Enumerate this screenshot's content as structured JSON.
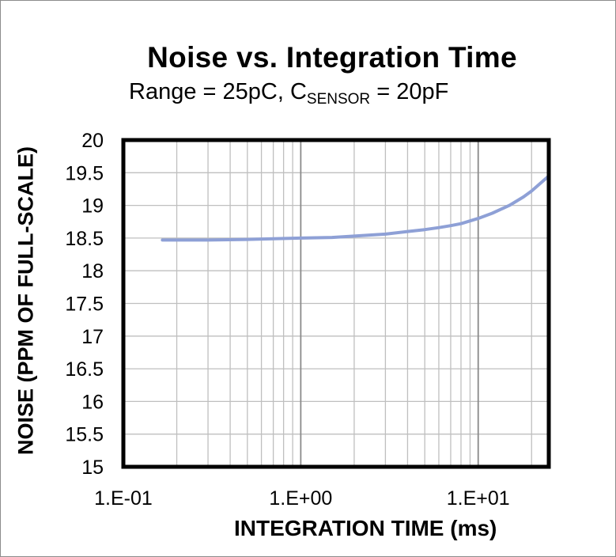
{
  "chart_data": {
    "type": "line",
    "title": "Noise  vs. Integration  Time",
    "subtitle_prefix": "Range = 25pC, C",
    "subtitle_sub": "SENSOR",
    "subtitle_suffix": " = 20pF",
    "xlabel": "INTEGRATION TIME (ms)",
    "ylabel": "NOISE (PPM OF FULL-SCALE)",
    "x_scale": "log",
    "xlim": [
      0.1,
      25
    ],
    "ylim": [
      15,
      20
    ],
    "grid": true,
    "x_tick_labels": [
      "1.E-01",
      "1.E+00",
      "1.E+01"
    ],
    "x_tick_values": [
      0.1,
      1,
      10
    ],
    "y_tick_labels": [
      "20",
      "19.5",
      "19",
      "18.5",
      "18",
      "17.5",
      "17",
      "16.5",
      "16",
      "15.5",
      "15"
    ],
    "y_tick_values": [
      20,
      19.5,
      19,
      18.5,
      18,
      17.5,
      17,
      16.5,
      16,
      15.5,
      15
    ],
    "series": [
      {
        "color": "#8ea0d6",
        "x": [
          0.166,
          0.2,
          0.3,
          0.5,
          0.7,
          1,
          1.5,
          2,
          3,
          4,
          5,
          6,
          7,
          8,
          10,
          12,
          15,
          18,
          20,
          25
        ],
        "y": [
          18.47,
          18.47,
          18.47,
          18.48,
          18.49,
          18.5,
          18.51,
          18.53,
          18.56,
          18.6,
          18.63,
          18.66,
          18.69,
          18.72,
          18.8,
          18.88,
          19.0,
          19.13,
          19.22,
          19.45
        ]
      }
    ]
  }
}
